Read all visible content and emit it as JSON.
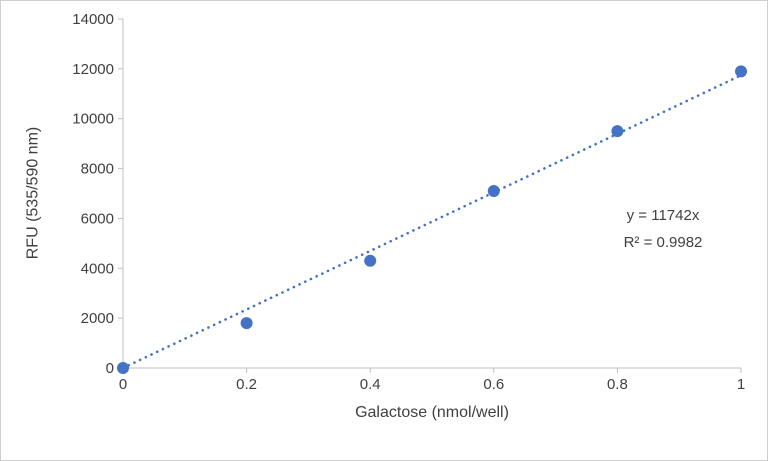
{
  "chart_data": {
    "type": "scatter",
    "x": [
      0,
      0.2,
      0.4,
      0.6,
      0.8,
      1
    ],
    "y": [
      0,
      1800,
      4300,
      7100,
      9500,
      11900
    ],
    "x_ticks": [
      0,
      0.2,
      0.4,
      0.6,
      0.8,
      1
    ],
    "y_ticks": [
      0,
      2000,
      4000,
      6000,
      8000,
      10000,
      12000,
      14000
    ],
    "xlim": [
      0,
      1
    ],
    "ylim": [
      0,
      14000
    ],
    "title": "",
    "xlabel": "Galactose (nmol/well)",
    "ylabel": "RFU (535/590 nm)",
    "grid": false,
    "legend": "none",
    "marker_shape": "circle",
    "trendline": {
      "type": "linear",
      "slope": 11742,
      "intercept": 0,
      "style": "dotted",
      "equation_label": "y = 11742x",
      "r_squared": 0.9982,
      "r_squared_label": "R² = 0.9982"
    },
    "colors": {
      "marker": "#4472C4",
      "trendline": "#4472C4",
      "axis": "#BFBFBF",
      "text": "#404040"
    }
  }
}
